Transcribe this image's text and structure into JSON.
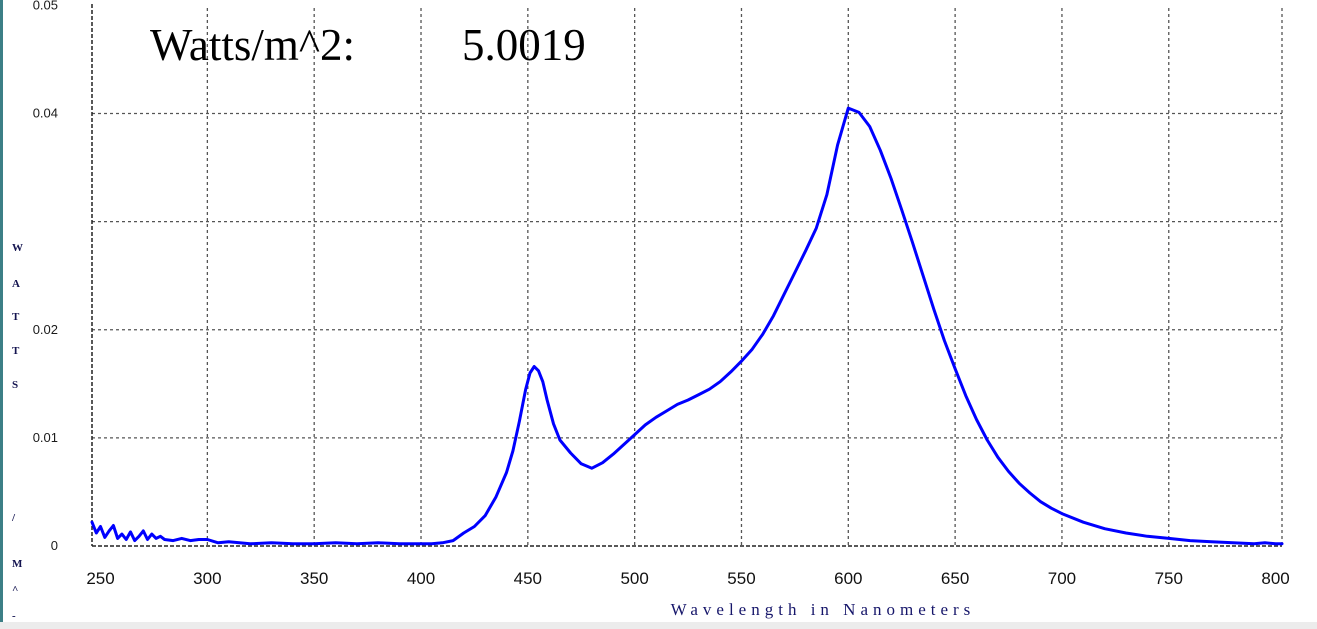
{
  "readout": {
    "label": "Watts/m^2:",
    "value": "5.0019"
  },
  "chart_data": {
    "type": "line",
    "title": "",
    "xlabel": "Wavelength in Nanometers",
    "ylabel_letters": [
      "W",
      "A",
      "T",
      "T",
      "S",
      "/",
      "M",
      "^",
      "-"
    ],
    "xlim": [
      246,
      803
    ],
    "ylim": [
      0,
      0.0505
    ],
    "x_ticks": [
      250,
      300,
      350,
      400,
      450,
      500,
      550,
      600,
      650,
      700,
      750,
      800
    ],
    "x_tick_labels": [
      "250",
      "300",
      "350",
      "400",
      "450",
      "500",
      "550",
      "600",
      "650",
      "700",
      "750",
      "800"
    ],
    "y_ticks": [
      0,
      0.01,
      0.02,
      0.04,
      0.05
    ],
    "y_tick_labels": [
      "0",
      "0.01",
      "0.02",
      "0.04",
      "0.05"
    ],
    "grid_x": [
      300,
      350,
      400,
      450,
      500,
      550,
      600,
      650,
      700,
      750
    ],
    "grid_y": [
      0.01,
      0.02,
      0.03,
      0.04
    ],
    "grid": true,
    "line_color": "#0000ff",
    "series": [
      {
        "values_x": [
          246,
          248,
          250,
          252,
          254,
          256,
          258,
          260,
          262,
          264,
          266,
          268,
          270,
          272,
          274,
          276,
          278,
          280,
          284,
          288,
          292,
          296,
          300,
          305,
          310,
          320,
          330,
          340,
          350,
          360,
          370,
          380,
          390,
          400,
          405,
          410,
          415,
          420,
          425,
          430,
          435,
          440,
          443,
          446,
          449,
          451,
          453,
          455,
          457,
          459,
          462,
          465,
          470,
          475,
          480,
          485,
          490,
          495,
          500,
          505,
          510,
          515,
          520,
          525,
          530,
          535,
          540,
          545,
          550,
          555,
          560,
          565,
          570,
          575,
          580,
          585,
          590,
          595,
          600,
          605,
          610,
          615,
          620,
          625,
          630,
          635,
          640,
          645,
          650,
          655,
          660,
          665,
          670,
          675,
          680,
          685,
          690,
          695,
          700,
          710,
          720,
          730,
          740,
          750,
          760,
          770,
          780,
          790,
          795,
          800,
          803
        ],
        "values_y": [
          0.0022,
          0.0012,
          0.0018,
          0.0008,
          0.0014,
          0.0019,
          0.0007,
          0.0011,
          0.0006,
          0.0013,
          0.0005,
          0.0009,
          0.0014,
          0.0006,
          0.0011,
          0.0007,
          0.0009,
          0.0006,
          0.0005,
          0.0007,
          0.0005,
          0.0006,
          0.0006,
          0.0003,
          0.0004,
          0.0002,
          0.0003,
          0.0002,
          0.0002,
          0.0003,
          0.0002,
          0.0003,
          0.0002,
          0.0002,
          0.0002,
          0.0003,
          0.0005,
          0.0012,
          0.0018,
          0.0028,
          0.0045,
          0.0068,
          0.0088,
          0.0115,
          0.0145,
          0.016,
          0.0166,
          0.0162,
          0.0152,
          0.0135,
          0.0113,
          0.0098,
          0.0086,
          0.0076,
          0.0072,
          0.0077,
          0.0085,
          0.0094,
          0.0103,
          0.0112,
          0.0119,
          0.0125,
          0.0131,
          0.0135,
          0.014,
          0.0145,
          0.0152,
          0.0161,
          0.0171,
          0.0182,
          0.0196,
          0.0213,
          0.0233,
          0.0253,
          0.0273,
          0.0294,
          0.0325,
          0.0371,
          0.0405,
          0.0401,
          0.0388,
          0.0366,
          0.034,
          0.0311,
          0.0281,
          0.025,
          0.0219,
          0.019,
          0.0164,
          0.0139,
          0.0117,
          0.0098,
          0.0082,
          0.0069,
          0.0058,
          0.0049,
          0.0041,
          0.0035,
          0.003,
          0.0022,
          0.0016,
          0.0012,
          0.0009,
          0.0007,
          0.0005,
          0.0004,
          0.0003,
          0.0002,
          0.0003,
          0.0002,
          0.0002
        ]
      }
    ]
  }
}
